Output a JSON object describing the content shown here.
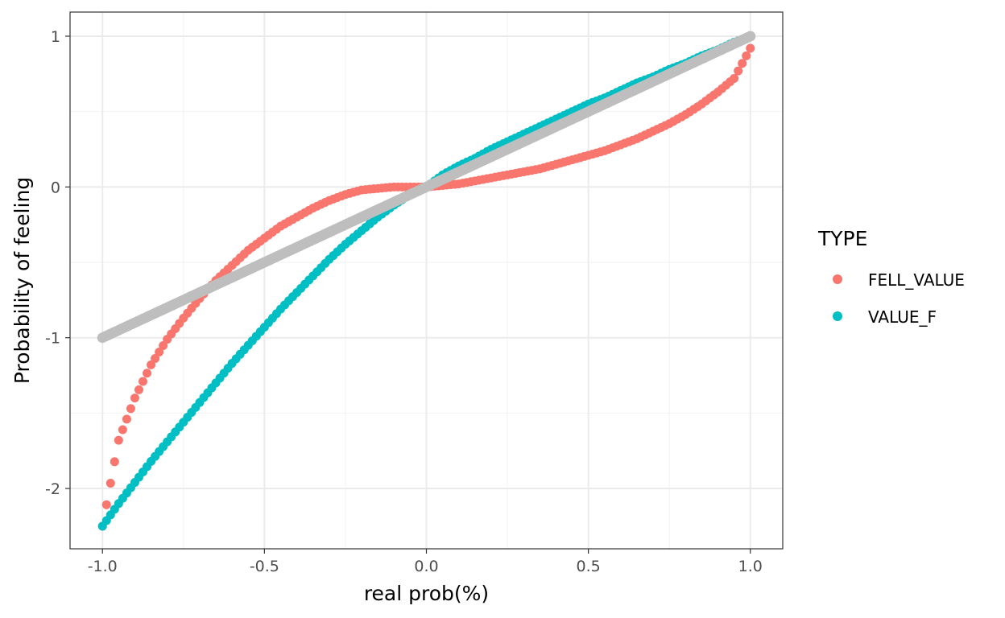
{
  "chart_data": {
    "type": "scatter",
    "xlabel": "real prob(%)",
    "ylabel": "Probability of feeling",
    "xlim": [
      -1.1,
      1.1
    ],
    "ylim": [
      -2.4,
      1.16
    ],
    "x_ticks": [
      -1.0,
      -0.5,
      0.0,
      0.5,
      1.0
    ],
    "x_tick_labels": [
      "-1.0",
      "-0.5",
      "0.0",
      "0.5",
      "1.0"
    ],
    "y_ticks": [
      -2,
      -1,
      0,
      1
    ],
    "y_tick_labels": [
      "-2",
      "-1",
      "0",
      "1"
    ],
    "grid": true,
    "legend": {
      "title": "TYPE",
      "placement": "right",
      "entries": [
        "FELL_VALUE",
        "VALUE_F"
      ]
    },
    "x": [
      -1.0,
      -0.95,
      -0.9,
      -0.85,
      -0.8,
      -0.75,
      -0.7,
      -0.65,
      -0.6,
      -0.55,
      -0.5,
      -0.45,
      -0.4,
      -0.35,
      -0.3,
      -0.25,
      -0.2,
      -0.15,
      -0.1,
      -0.05,
      0.0,
      0.05,
      0.1,
      0.15,
      0.2,
      0.25,
      0.3,
      0.35,
      0.4,
      0.45,
      0.5,
      0.55,
      0.6,
      0.65,
      0.7,
      0.75,
      0.8,
      0.85,
      0.9,
      0.95,
      1.0
    ],
    "series": [
      {
        "name": "FELL_VALUE",
        "color": "#F8766D",
        "values": [
          -2.25,
          -1.68,
          -1.4,
          -1.18,
          -1.01,
          -0.87,
          -0.74,
          -0.62,
          -0.52,
          -0.42,
          -0.34,
          -0.26,
          -0.2,
          -0.14,
          -0.09,
          -0.05,
          -0.02,
          -0.01,
          0.0,
          0.0,
          0.0,
          0.01,
          0.02,
          0.04,
          0.06,
          0.08,
          0.1,
          0.12,
          0.15,
          0.18,
          0.21,
          0.24,
          0.28,
          0.32,
          0.37,
          0.42,
          0.48,
          0.55,
          0.63,
          0.72,
          0.92
        ]
      },
      {
        "name": "VALUE_F",
        "color": "#00BFC4",
        "values": [
          -2.25,
          -2.1,
          -1.96,
          -1.82,
          -1.69,
          -1.56,
          -1.43,
          -1.3,
          -1.17,
          -1.05,
          -0.93,
          -0.81,
          -0.7,
          -0.59,
          -0.48,
          -0.38,
          -0.29,
          -0.2,
          -0.12,
          -0.05,
          0.0,
          0.08,
          0.14,
          0.19,
          0.25,
          0.3,
          0.35,
          0.4,
          0.45,
          0.5,
          0.55,
          0.59,
          0.64,
          0.69,
          0.73,
          0.78,
          0.82,
          0.87,
          0.91,
          0.96,
          1.0
        ]
      },
      {
        "color": "#BEBEBE",
        "values": [
          -1.0,
          -0.95,
          -0.9,
          -0.85,
          -0.8,
          -0.75,
          -0.7,
          -0.65,
          -0.6,
          -0.55,
          -0.5,
          -0.45,
          -0.4,
          -0.35,
          -0.3,
          -0.25,
          -0.2,
          -0.15,
          -0.1,
          -0.05,
          0.0,
          0.05,
          0.1,
          0.15,
          0.2,
          0.25,
          0.3,
          0.35,
          0.4,
          0.45,
          0.5,
          0.55,
          0.6,
          0.65,
          0.7,
          0.75,
          0.8,
          0.85,
          0.9,
          0.95,
          1.0
        ]
      }
    ]
  }
}
